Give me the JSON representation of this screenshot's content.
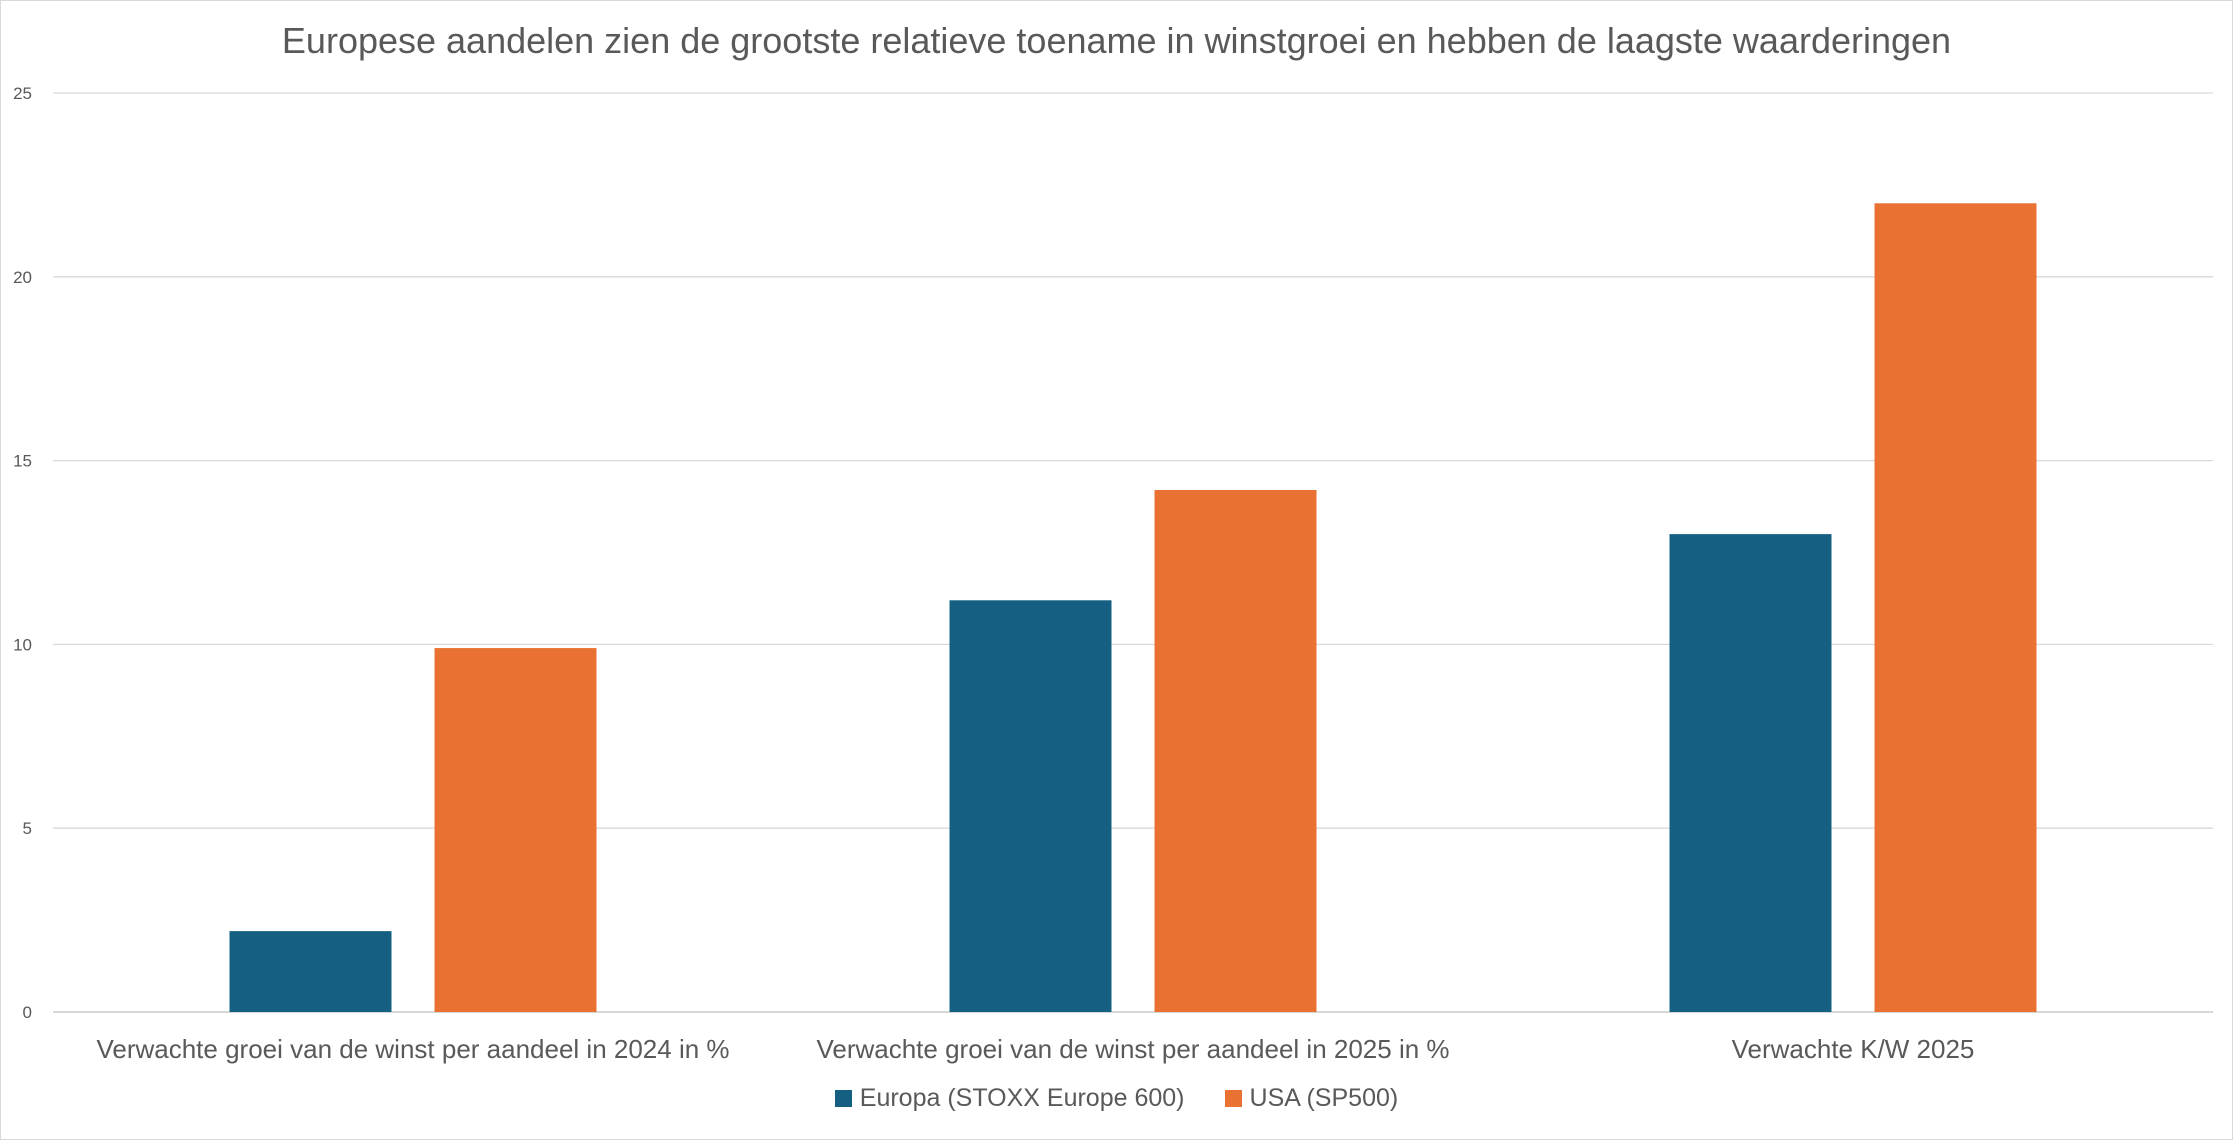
{
  "chart_data": {
    "type": "bar",
    "title": "Europese aandelen zien de grootste relatieve toename in winstgroei en hebben de laagste waarderingen",
    "categories": [
      "Verwachte groei van de winst per aandeel in 2024 in %",
      "Verwachte groei van de winst per aandeel in 2025 in %",
      "Verwachte K/W 2025"
    ],
    "series": [
      {
        "name": "Europa (STOXX Europe 600)",
        "color": "#156082",
        "values": [
          2.2,
          11.2,
          13.0
        ]
      },
      {
        "name": "USA (SP500)",
        "color": "#E97132",
        "values": [
          9.9,
          14.2,
          22.0
        ]
      }
    ],
    "ylim": [
      0,
      25
    ],
    "yticks": [
      "0",
      "5",
      "10",
      "15",
      "20",
      "25"
    ],
    "xlabel": "",
    "ylabel": "",
    "grid": true,
    "legend_position": "bottom"
  }
}
